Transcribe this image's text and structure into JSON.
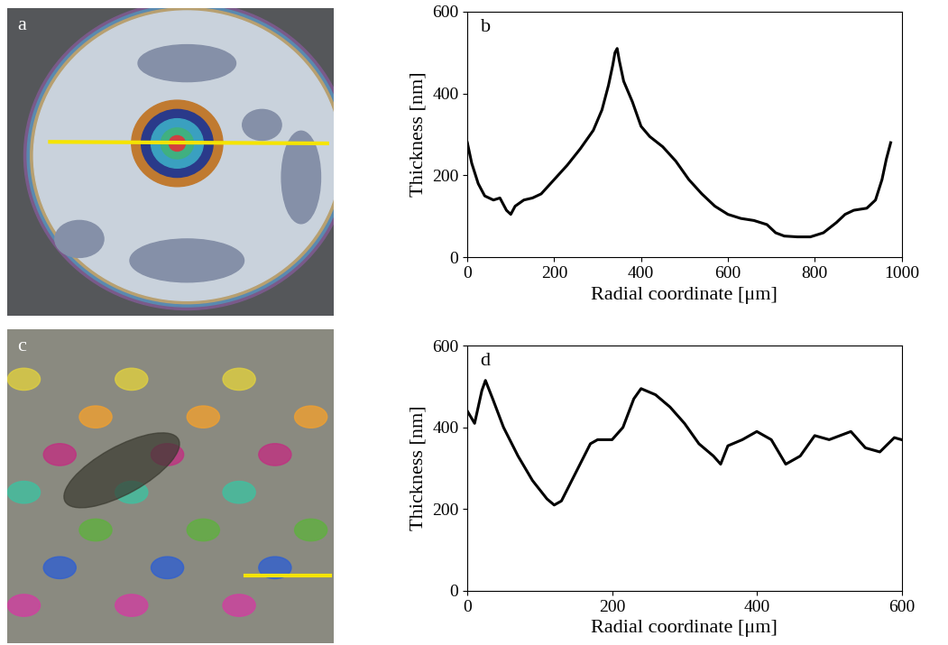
{
  "images": [
    {
      "label": "a"
    },
    {
      "label": "c"
    }
  ],
  "chart_data": [
    {
      "type": "line",
      "annotations": [
        "b"
      ],
      "x_label": "Radial coordinate [μm]",
      "y_label": "Thickness [nm]",
      "x": [
        0,
        10,
        25,
        40,
        60,
        75,
        90,
        100,
        110,
        130,
        150,
        170,
        200,
        230,
        260,
        290,
        310,
        325,
        335,
        340,
        345,
        350,
        360,
        380,
        400,
        420,
        450,
        480,
        510,
        540,
        570,
        600,
        630,
        660,
        690,
        710,
        730,
        760,
        790,
        820,
        850,
        870,
        890,
        920,
        940,
        955,
        965,
        975
      ],
      "values": [
        280,
        230,
        180,
        150,
        140,
        145,
        115,
        105,
        125,
        140,
        145,
        155,
        190,
        225,
        265,
        310,
        360,
        420,
        470,
        500,
        510,
        480,
        430,
        380,
        320,
        295,
        270,
        235,
        190,
        155,
        125,
        105,
        95,
        90,
        80,
        60,
        52,
        50,
        50,
        60,
        85,
        105,
        115,
        120,
        140,
        190,
        240,
        280
      ],
      "color": "#000000",
      "xlim": [
        0,
        1000
      ],
      "xticks": [
        0,
        200,
        400,
        600,
        800,
        1000
      ],
      "ylim": [
        0,
        600
      ],
      "yticks": [
        0,
        200,
        400,
        600
      ]
    },
    {
      "type": "line",
      "annotations": [
        "d"
      ],
      "x_label": "Radial coordinate [μm]",
      "y_label": "Thickness [nm]",
      "x": [
        0,
        10,
        20,
        25,
        35,
        50,
        70,
        90,
        110,
        120,
        130,
        150,
        170,
        180,
        200,
        215,
        230,
        240,
        260,
        280,
        300,
        320,
        340,
        350,
        360,
        380,
        400,
        420,
        440,
        460,
        480,
        500,
        530,
        550,
        570,
        590,
        600
      ],
      "values": [
        440,
        410,
        490,
        515,
        470,
        400,
        330,
        270,
        225,
        210,
        220,
        290,
        360,
        370,
        370,
        400,
        470,
        495,
        480,
        450,
        410,
        360,
        330,
        310,
        355,
        370,
        390,
        370,
        310,
        330,
        380,
        370,
        390,
        350,
        340,
        375,
        370
      ],
      "color": "#000000",
      "xlim": [
        0,
        600
      ],
      "xticks": [
        0,
        200,
        400,
        600
      ],
      "ylim": [
        0,
        600
      ],
      "yticks": [
        0,
        200,
        400,
        600
      ]
    }
  ]
}
